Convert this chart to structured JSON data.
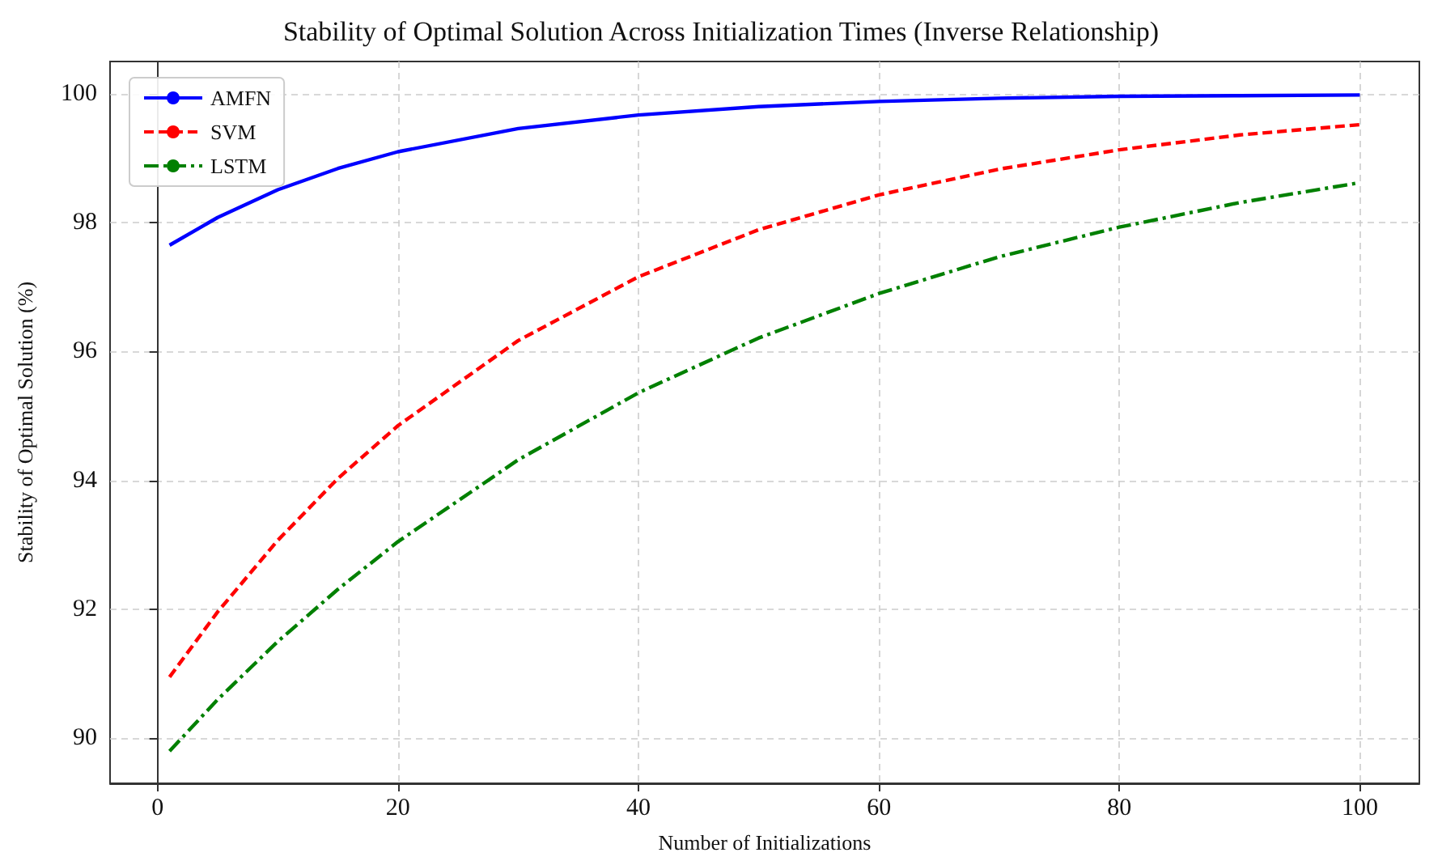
{
  "chart_data": {
    "type": "line",
    "title": "Stability of Optimal Solution Across Initialization Times (Inverse Relationship)",
    "xlabel": "Number of Initializations",
    "ylabel": "Stability of Optimal Solution (%)",
    "x": [
      1,
      5,
      10,
      15,
      20,
      30,
      40,
      50,
      60,
      70,
      80,
      90,
      100
    ],
    "series": [
      {
        "name": "AMFN",
        "color": "#0000ff",
        "line_style": "solid",
        "values": [
          97.65,
          98.08,
          98.51,
          98.84,
          99.1,
          99.46,
          99.67,
          99.8,
          99.88,
          99.93,
          99.96,
          99.97,
          99.98
        ]
      },
      {
        "name": "SVM",
        "color": "#ff0000",
        "line_style": "dashed",
        "values": [
          90.95,
          91.96,
          93.07,
          94.03,
          94.85,
          96.17,
          97.16,
          97.89,
          98.43,
          98.83,
          99.13,
          99.36,
          99.52
        ]
      },
      {
        "name": "LSTM",
        "color": "#008000",
        "line_style": "dashdot",
        "values": [
          89.8,
          90.6,
          91.5,
          92.31,
          93.05,
          94.32,
          95.36,
          96.21,
          96.9,
          97.47,
          97.93,
          98.31,
          98.62
        ]
      }
    ],
    "xlim": [
      -3.95,
      104.95
    ],
    "xticks": [
      0,
      20,
      40,
      60,
      80,
      100
    ],
    "ylim": [
      89.3,
      100.5
    ],
    "yticks": [
      90,
      92,
      94,
      96,
      98,
      100
    ],
    "grid": true,
    "legend": "top left",
    "marker": "none"
  }
}
